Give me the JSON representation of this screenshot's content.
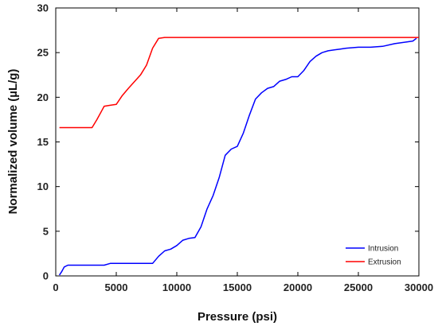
{
  "chart_data": {
    "type": "line",
    "xlabel": "Pressure (psi)",
    "ylabel": "Normalized volume (µL/g)",
    "xlim": [
      0,
      30000
    ],
    "ylim": [
      0,
      30
    ],
    "xticks": [
      0,
      5000,
      10000,
      15000,
      20000,
      25000,
      30000
    ],
    "yticks": [
      0,
      5,
      10,
      15,
      20,
      25,
      30
    ],
    "grid": false,
    "legend_position": "bottom-right",
    "series": [
      {
        "name": "Intrusion",
        "color": "#0000ff",
        "x": [
          300,
          500,
          700,
          1000,
          2000,
          4000,
          4500,
          6000,
          8000,
          8500,
          9000,
          9500,
          10000,
          10500,
          11000,
          11500,
          12000,
          12500,
          13000,
          13500,
          14000,
          14500,
          15000,
          15500,
          16000,
          16500,
          17000,
          17500,
          18000,
          18500,
          19000,
          19500,
          20000,
          20500,
          21000,
          21500,
          22000,
          22500,
          23000,
          23500,
          24000,
          25000,
          26000,
          27000,
          28000,
          29000,
          29500,
          29800
        ],
        "y": [
          0.1,
          0.5,
          1.0,
          1.2,
          1.2,
          1.2,
          1.4,
          1.4,
          1.4,
          2.2,
          2.8,
          3.0,
          3.4,
          4.0,
          4.2,
          4.3,
          5.5,
          7.5,
          9.0,
          11.0,
          13.5,
          14.2,
          14.5,
          16.0,
          18.0,
          19.8,
          20.5,
          21.0,
          21.2,
          21.8,
          22.0,
          22.3,
          22.3,
          23.0,
          24.0,
          24.6,
          25.0,
          25.2,
          25.3,
          25.4,
          25.5,
          25.6,
          25.6,
          25.7,
          26.0,
          26.2,
          26.3,
          26.6
        ]
      },
      {
        "name": "Extrusion",
        "color": "#ff0000",
        "x": [
          300,
          1000,
          2000,
          3000,
          3400,
          3800,
          4000,
          4500,
          5000,
          5500,
          6000,
          7000,
          7500,
          8000,
          8500,
          9000,
          15000,
          20000,
          25000,
          30000
        ],
        "y": [
          16.6,
          16.6,
          16.6,
          16.6,
          17.5,
          18.5,
          19.0,
          19.1,
          19.2,
          20.2,
          21.0,
          22.5,
          23.6,
          25.5,
          26.6,
          26.7,
          26.7,
          26.7,
          26.7,
          26.7
        ]
      }
    ]
  }
}
